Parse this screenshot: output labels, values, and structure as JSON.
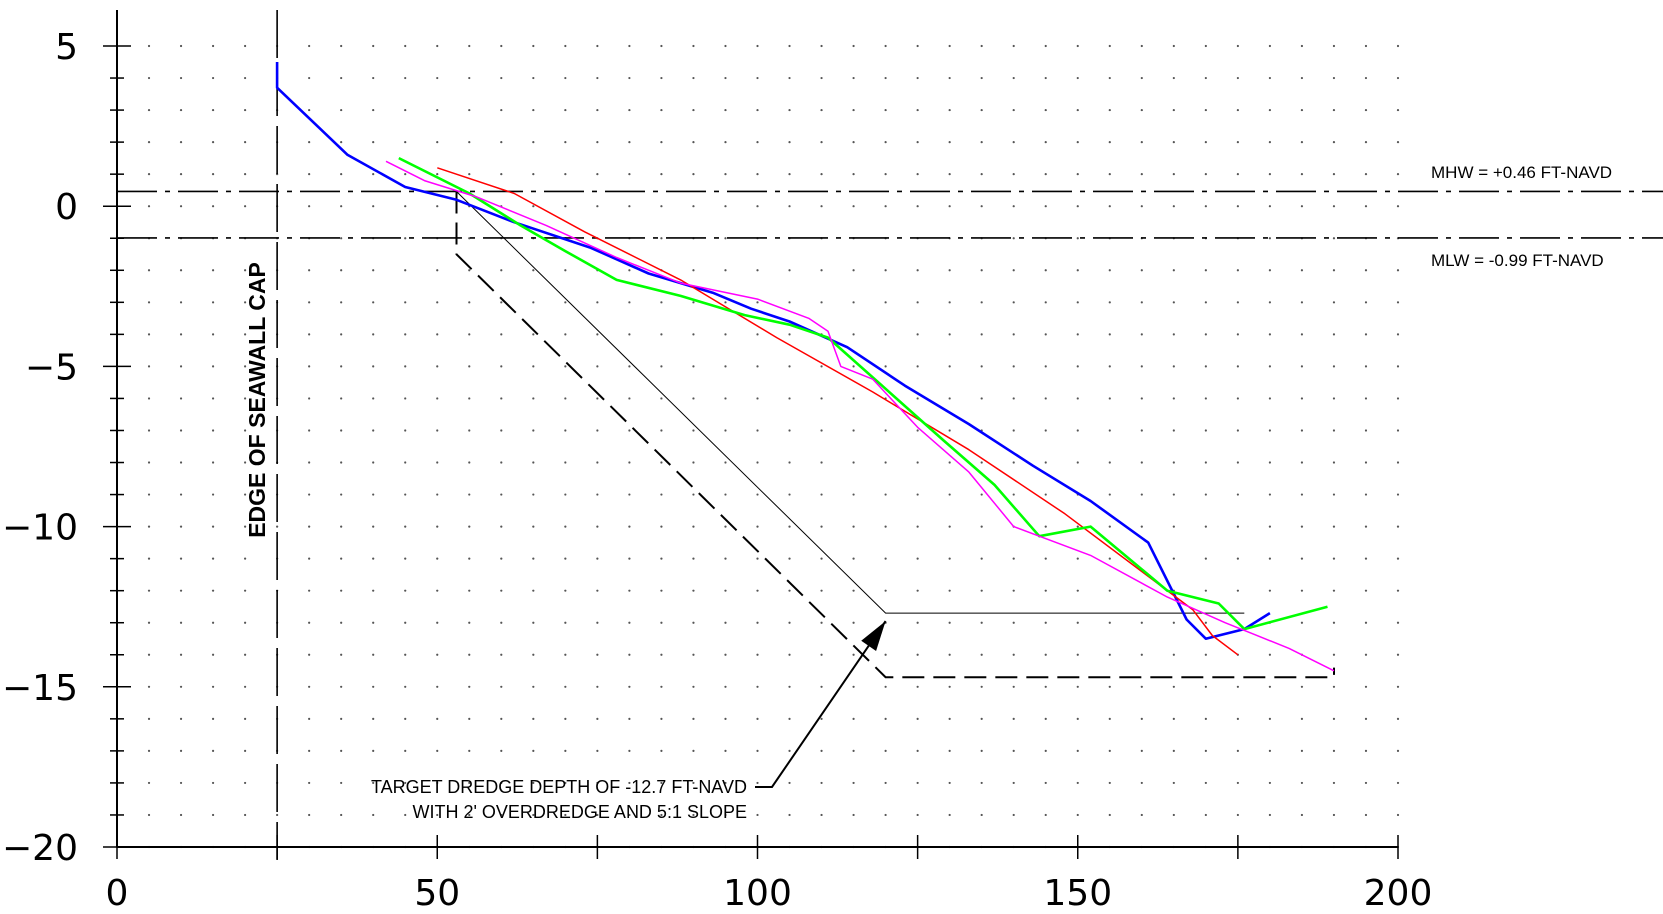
{
  "chart_data": {
    "type": "line",
    "title": "",
    "xlabel": "",
    "ylabel": "",
    "xlim": [
      0,
      200
    ],
    "ylim": [
      -20,
      5
    ],
    "x_ticks": [
      "0",
      "50",
      "100",
      "150",
      "200"
    ],
    "y_ticks": [
      "5",
      "0",
      "−5",
      "−10",
      "−15",
      "−20"
    ],
    "grid": "dotted",
    "series": [
      {
        "color": "#0000ff",
        "points": [
          [
            25,
            4.5
          ],
          [
            25,
            3.7
          ],
          [
            36,
            1.6
          ],
          [
            45,
            0.6
          ],
          [
            53,
            0.2
          ],
          [
            62,
            -0.5
          ],
          [
            74,
            -1.3
          ],
          [
            83,
            -2.1
          ],
          [
            93,
            -2.7
          ],
          [
            99,
            -3.2
          ],
          [
            105,
            -3.6
          ],
          [
            114,
            -4.4
          ],
          [
            123,
            -5.6
          ],
          [
            133,
            -6.8
          ],
          [
            143,
            -8.1
          ],
          [
            152,
            -9.2
          ],
          [
            161,
            -10.5
          ],
          [
            167,
            -12.9
          ],
          [
            170,
            -13.5
          ],
          [
            176,
            -13.2
          ],
          [
            180,
            -12.7
          ]
        ]
      },
      {
        "color": "#ff0000",
        "points": [
          [
            50,
            1.2
          ],
          [
            62,
            0.4
          ],
          [
            73,
            -0.8
          ],
          [
            88,
            -2.3
          ],
          [
            103,
            -4.1
          ],
          [
            118,
            -5.8
          ],
          [
            133,
            -7.6
          ],
          [
            148,
            -9.6
          ],
          [
            160,
            -11.4
          ],
          [
            168,
            -12.6
          ],
          [
            171,
            -13.4
          ],
          [
            175,
            -14.0
          ]
        ]
      },
      {
        "color": "#00ff00",
        "points": [
          [
            44,
            1.5
          ],
          [
            55,
            0.4
          ],
          [
            63,
            -0.6
          ],
          [
            70,
            -1.4
          ],
          [
            78,
            -2.3
          ],
          [
            88,
            -2.8
          ],
          [
            98,
            -3.4
          ],
          [
            105,
            -3.7
          ],
          [
            111,
            -4.1
          ],
          [
            120,
            -5.7
          ],
          [
            129,
            -7.3
          ],
          [
            137,
            -8.7
          ],
          [
            144,
            -10.3
          ],
          [
            152,
            -10.0
          ],
          [
            164,
            -12.0
          ],
          [
            172,
            -12.4
          ],
          [
            176,
            -13.2
          ],
          [
            189,
            -12.5
          ]
        ]
      },
      {
        "color": "#ff00ff",
        "points": [
          [
            42,
            1.4
          ],
          [
            48,
            0.8
          ],
          [
            56,
            0.3
          ],
          [
            67,
            -0.6
          ],
          [
            78,
            -1.6
          ],
          [
            88,
            -2.4
          ],
          [
            100,
            -2.9
          ],
          [
            108,
            -3.5
          ],
          [
            111,
            -3.9
          ],
          [
            113,
            -5.0
          ],
          [
            118,
            -5.4
          ],
          [
            125,
            -6.9
          ],
          [
            133,
            -8.3
          ],
          [
            140,
            -10.0
          ],
          [
            152,
            -10.9
          ],
          [
            164,
            -12.2
          ],
          [
            173,
            -13.0
          ],
          [
            183,
            -13.8
          ],
          [
            190,
            -14.5
          ]
        ]
      }
    ],
    "reference_lines": [
      {
        "y": 0.46,
        "label": "MHW = +0.46 FT-NAVD"
      },
      {
        "y": -0.99,
        "label": "MLW = -0.99 FT-NAVD"
      }
    ],
    "vertical_reference": {
      "x": 25,
      "label": "EDGE OF SEAWALL CAP"
    },
    "design_template": {
      "points": [
        [
          53,
          0.46
        ],
        [
          120,
          -12.7
        ],
        [
          176,
          -12.7
        ]
      ]
    },
    "overdredge_template": {
      "points": [
        [
          53,
          0.46
        ],
        [
          53,
          -1.5
        ],
        [
          120,
          -14.7
        ],
        [
          190,
          -14.7
        ],
        [
          190,
          -14.4
        ]
      ]
    },
    "annotation": {
      "line1": "TARGET DREDGE DEPTH OF -12.7 FT-NAVD",
      "line2": "WITH 2' OVERDREDGE AND 5:1 SLOPE",
      "arrow_to": [
        120,
        -12.7
      ]
    }
  }
}
